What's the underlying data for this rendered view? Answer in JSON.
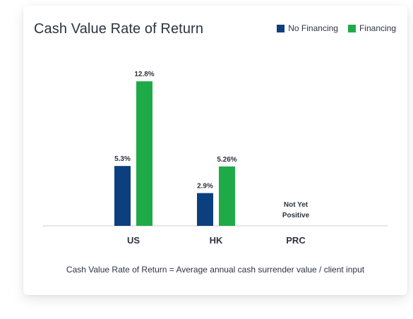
{
  "chart_data": {
    "type": "bar",
    "title": "Cash Value Rate of Return",
    "categories": [
      "US",
      "HK",
      "PRC"
    ],
    "series": [
      {
        "name": "No Financing",
        "color": "#0b3f7e",
        "values": [
          5.3,
          2.9,
          null
        ],
        "labels": [
          "5.3%",
          "2.9%",
          ""
        ]
      },
      {
        "name": "Financing",
        "color": "#1faa48",
        "values": [
          12.8,
          5.26,
          null
        ],
        "labels": [
          "12.8%",
          "5.26%",
          ""
        ]
      }
    ],
    "category_notes": [
      "",
      "",
      "Not Yet Positive"
    ],
    "ylim": [
      0,
      13.5
    ],
    "grid": false,
    "legend_position": "top-right",
    "xlabel": "",
    "ylabel": ""
  },
  "footnote": "Cash Value Rate of Return = Average annual cash surrender value / client input"
}
